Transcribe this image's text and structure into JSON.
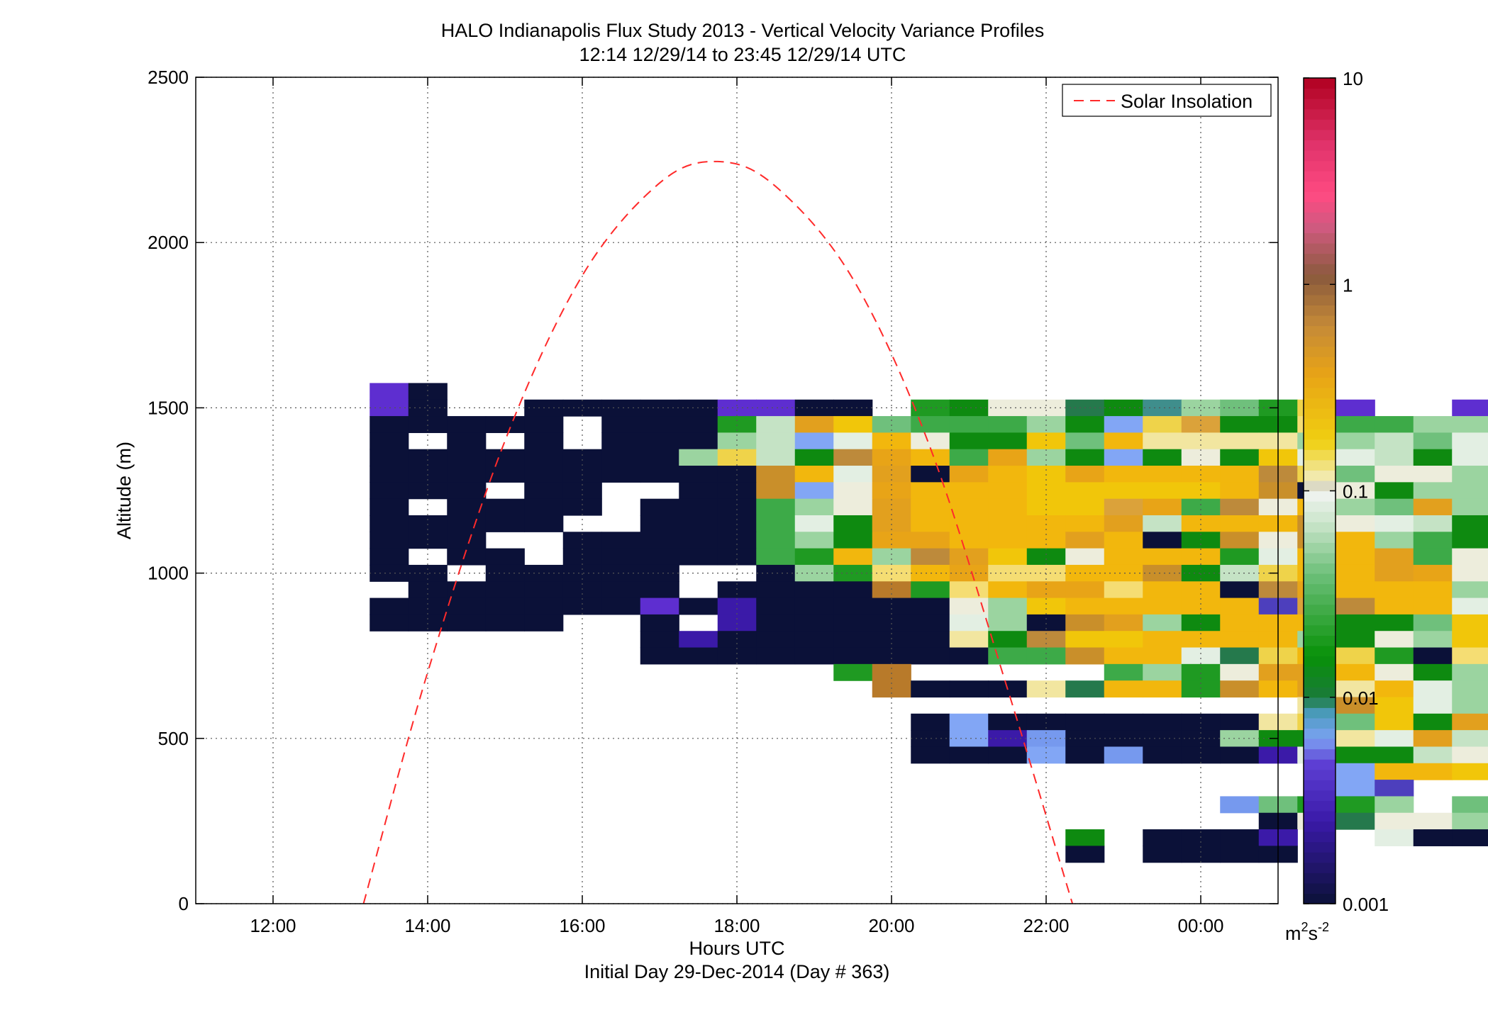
{
  "chart_data": {
    "type": "heatmap",
    "title": "HALO Indianapolis Flux Study 2013 - Vertical Velocity Variance Profiles",
    "subtitle": "12:14 12/29/14 to 23:45 12/29/14  UTC",
    "xlabel": "Hours UTC",
    "xlabel2": "Initial Day 29-Dec-2014 (Day # 363)",
    "ylabel": "Altitude (m)",
    "xlim": [
      11,
      25
    ],
    "ylim": [
      0,
      2500
    ],
    "x_ticks": [
      12,
      14,
      16,
      18,
      20,
      22,
      24
    ],
    "x_tick_labels": [
      "12:00",
      "14:00",
      "16:00",
      "18:00",
      "20:00",
      "22:00",
      "00:00"
    ],
    "y_ticks": [
      0,
      500,
      1000,
      1500,
      2000,
      2500
    ],
    "y_tick_labels": [
      "0",
      "500",
      "1000",
      "1500",
      "2000",
      "2500"
    ],
    "grid": true,
    "colorbar": {
      "scale": "log",
      "range": [
        0.001,
        10
      ],
      "ticks": [
        0.001,
        0.01,
        0.1,
        1,
        10
      ],
      "tick_labels": [
        "0.001",
        "0.01",
        "0.1",
        "1",
        "10"
      ],
      "unit_base": "m",
      "unit_sup1": "2",
      "unit_mid": "s",
      "unit_sup2": "-2"
    },
    "legend": {
      "position": "top-right",
      "entries": [
        "Solar Insolation"
      ]
    },
    "solar_insolation": {
      "color": "#ff2a2a",
      "style": "dashed",
      "x": [
        13.17,
        14.0,
        15.0,
        16.0,
        17.0,
        17.75,
        18.5,
        19.5,
        20.5,
        21.5,
        22.34
      ],
      "y": [
        0,
        700,
        1400,
        1900,
        2180,
        2245,
        2170,
        1890,
        1380,
        650,
        0
      ]
    },
    "heatmap": {
      "x_start": 12.25,
      "x_step": 0.5,
      "y_start": 100,
      "y_step": 50,
      "rows": [
        "..Vm............................",
        "..Vm..mmmmmVVmmHGgddRgPbaGiV..Va",
        "..mmmmm.mmmGcqoakkkbgjirggfkkbbO",
        "..m.m.m.mmmbcjhndggoaneeeebbcahg",
        "..mmmmmmmmbicgtpnkpbgjgdgohhcghc",
        "..mmmmmmmmmmsnhqmpnopnnnntiaddbq",
        "..mmm.mm..mmsjdpnnnooooonsmdgbbd",
        "..m.mmmm.mmmkbdqnnnoorpktdnbaqbb",
        "..mmmmm..mmmkhgqnnnnnqcnnnsdhcgi",
        "..mmm..mmmmmkbgppnnnqnmgsdsnbkgd",
        "..m.mm.mmmmmkGnbtqogdnnnGhnnqkdo",
        "..mm.mmmmm..mbGfnpffnnsgcinnqpdo",
        "...mmmmmmm.mmmmMGfnppfnnmtpnnnbd",
        "..mmmmmmmVmwmmmmmdbonnnnnvrtnnhn",
        "..mmmmm..m.wmmmmmhbmsqbgnnnggaoo",
        ".........mwmmmmmmegtoonnnnbgdboo",
        ".........mmmmmmmmmkksnnhRiniGmfq",
        "..............GM.....kbGdqqndgbo",
        "...............MmmmeRnnGsnqenhbc",
        "..........................esohbo",
        "................mjmmmmmmmeiaogqo",
        "................mjwUmmmmbggehqco",
        "................mmmjmUmmmwhggcdh",
        "...........................jnnoo",
        "...........................jv..e",
        "........................UaGGb.aw",
        ".........................mdRddbk",
        "....................g.mmmw..hmmm",
        "....................m.mmmm......",
        "................................"
      ]
    },
    "palette": {
      "m": "#0b1138",
      "V": "#5e2ed0",
      "v": "#4d3fbd",
      "w": "#3b1aa8",
      "U": "#7699ee",
      "j": "#82a6f5",
      "B": "#5c9dc4",
      "P": "#3f8e8c",
      "R": "#25794c",
      "O": "#0a1a3a",
      "M": "#b87a2a",
      "G": "#1f9a22",
      "g": "#0e8a10",
      "k": "#3daa48",
      "a": "#6fc07c",
      "b": "#9bd4a0",
      "c": "#c5e3c5",
      "h": "#e3efe3",
      "d": "#ededdc",
      "e": "#f2e6a0",
      "f": "#f5dd73",
      "i": "#efd34a",
      "n": "#f2b70d",
      "o": "#f1c60a",
      "p": "#e8a417",
      "q": "#e2a01e",
      "r": "#dba23a",
      "s": "#c98f2a",
      "t": "#bd8a3b"
    }
  }
}
